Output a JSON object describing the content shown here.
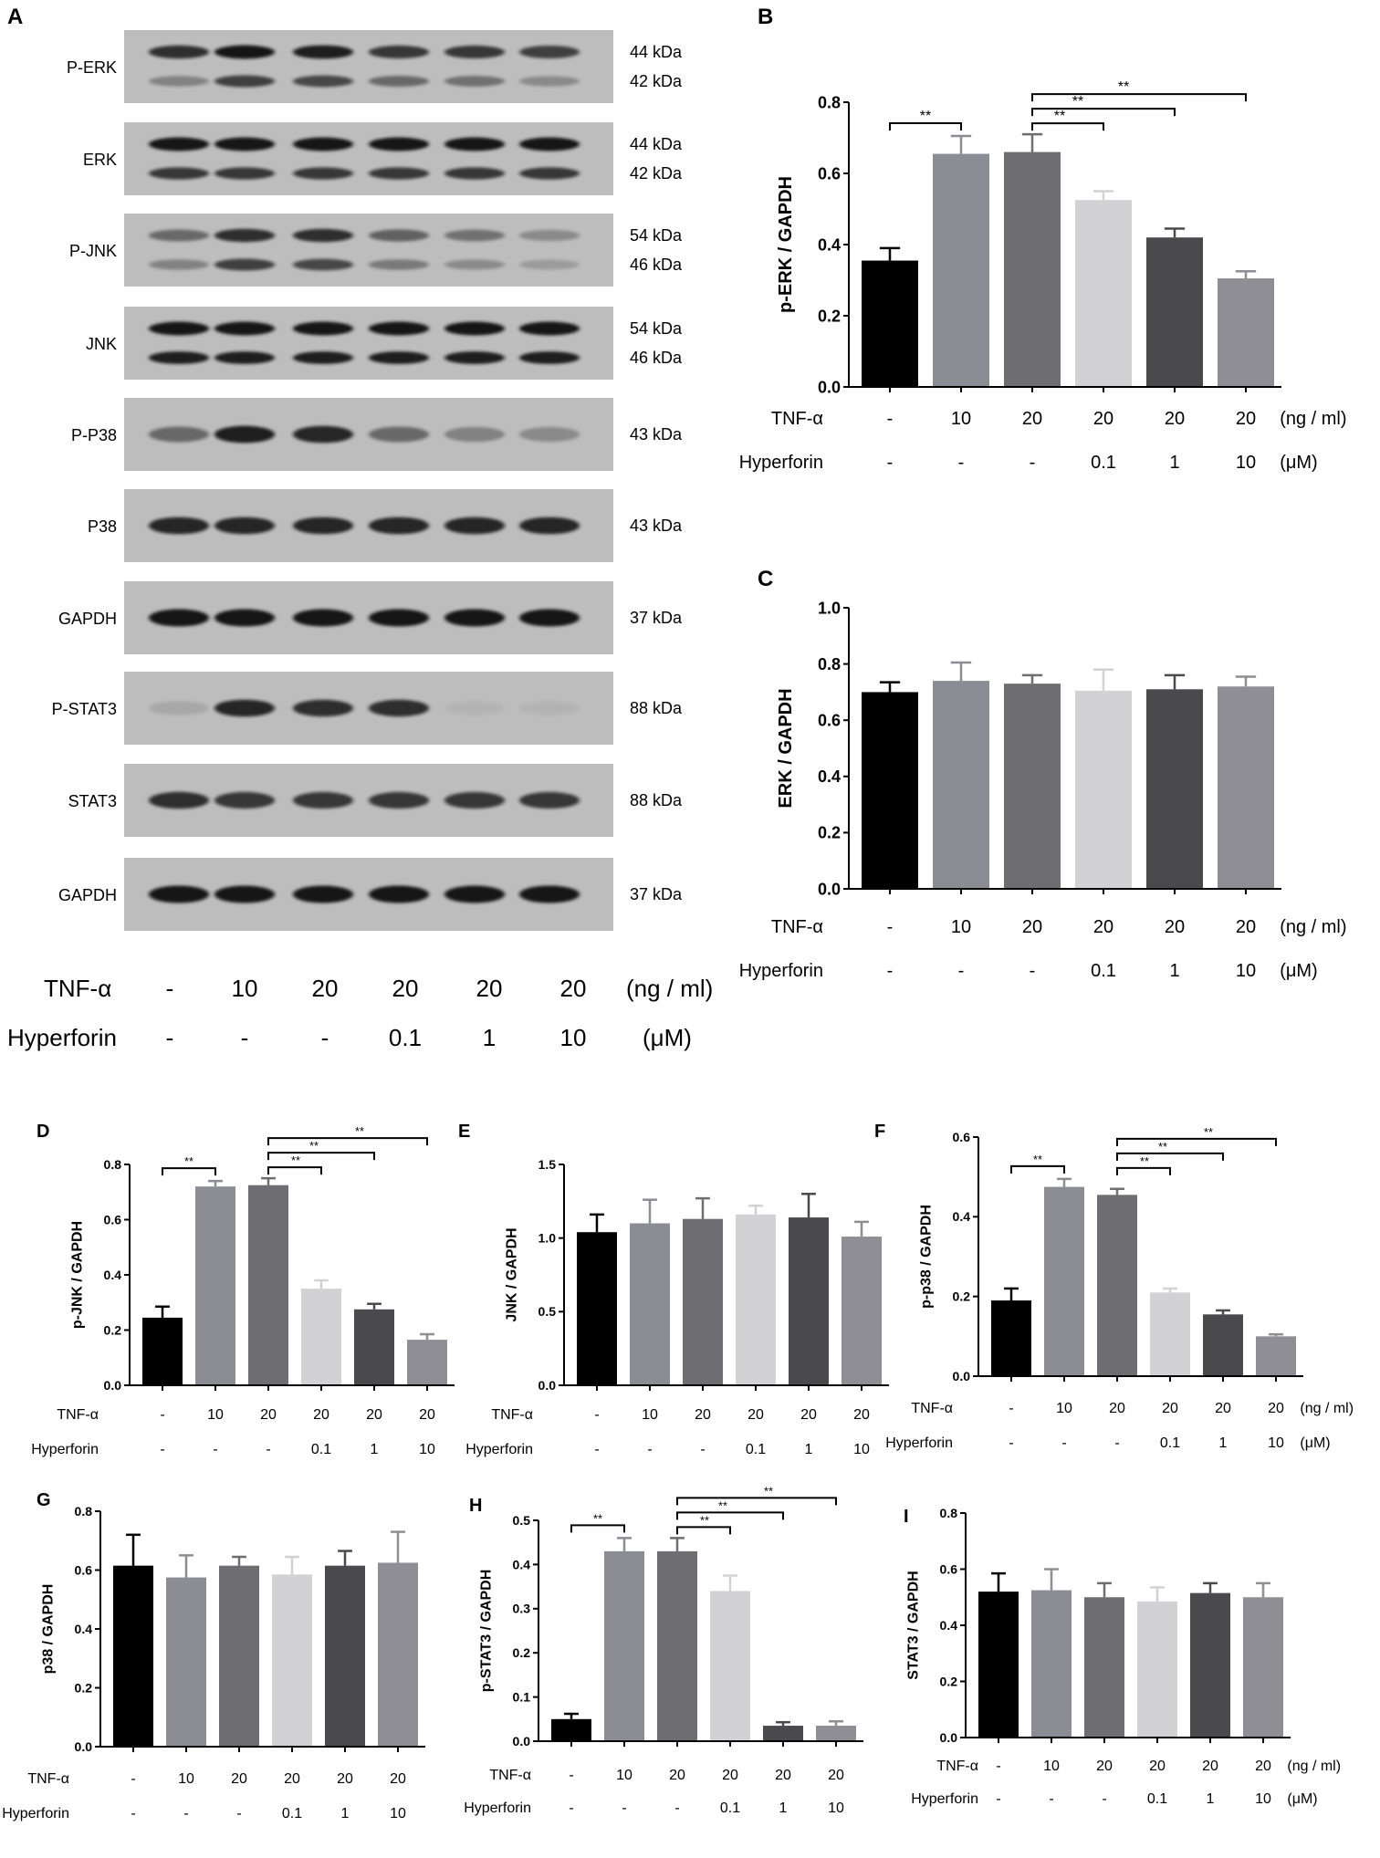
{
  "colors": {
    "bar_colors": [
      "#000000",
      "#8c8c94",
      "#6e6e72",
      "#d2d2d4",
      "#4a4a4c",
      "#8e8e94"
    ],
    "text": "#111111",
    "blot_bg": "#bdbdbd",
    "band": "#141414"
  },
  "western_blot": {
    "letter": "A",
    "rows": [
      {
        "label": "P-ERK",
        "kda": [
          "44 kDa",
          "42 kDa"
        ],
        "band1": [
          0.85,
          1.0,
          0.95,
          0.8,
          0.8,
          0.75
        ],
        "band2": [
          0.35,
          0.75,
          0.7,
          0.5,
          0.45,
          0.3
        ]
      },
      {
        "label": "ERK",
        "kda": [
          "44 kDa",
          "42 kDa"
        ],
        "band1": [
          1,
          1,
          1,
          1,
          1,
          1
        ],
        "band2": [
          0.8,
          0.8,
          0.8,
          0.8,
          0.8,
          0.8
        ]
      },
      {
        "label": "P-JNK",
        "kda": [
          "54 kDa",
          "46 kDa"
        ],
        "band1": [
          0.5,
          0.85,
          0.85,
          0.55,
          0.45,
          0.3
        ],
        "band2": [
          0.35,
          0.75,
          0.7,
          0.4,
          0.3,
          0.2
        ]
      },
      {
        "label": "JNK",
        "kda": [
          "54 kDa",
          "46 kDa"
        ],
        "band1": [
          1,
          1,
          1,
          1,
          1,
          1
        ],
        "band2": [
          0.95,
          0.95,
          0.95,
          0.95,
          0.95,
          0.95
        ]
      },
      {
        "label": "P-P38",
        "kda": [
          "43 kDa"
        ],
        "band1": [
          0.5,
          0.95,
          0.9,
          0.5,
          0.35,
          0.3
        ]
      },
      {
        "label": "P38",
        "kda": [
          "43 kDa"
        ],
        "band1": [
          0.9,
          0.9,
          0.9,
          0.9,
          0.9,
          0.9
        ]
      },
      {
        "label": "GAPDH",
        "kda": [
          "37 kDa"
        ],
        "band1": [
          1,
          1,
          1,
          1,
          1,
          1
        ]
      },
      {
        "label": "P-STAT3",
        "kda": [
          "88 kDa"
        ],
        "band1": [
          0.12,
          0.9,
          0.85,
          0.85,
          0.03,
          0.03
        ]
      },
      {
        "label": "STAT3",
        "kda": [
          "88 kDa"
        ],
        "band1": [
          0.85,
          0.8,
          0.8,
          0.8,
          0.8,
          0.8
        ]
      },
      {
        "label": "GAPDH",
        "kda": [
          "37 kDa"
        ],
        "band1": [
          1,
          1,
          1,
          1,
          1,
          1
        ]
      }
    ],
    "tnf_label": "TNF-α",
    "tnf_values": [
      "-",
      "10",
      "20",
      "20",
      "20",
      "20"
    ],
    "tnf_unit": "(ng / ml)",
    "hyper_label": "Hyperforin",
    "hyper_values": [
      "-",
      "-",
      "-",
      "0.1",
      "1",
      "10"
    ],
    "hyper_unit": "(μM)"
  },
  "chart_data": [
    {
      "letter": "B",
      "type": "bar",
      "ylabel": "p-ERK / GAPDH",
      "ylim": [
        0,
        0.8
      ],
      "yticks": [
        "0.0",
        "0.2",
        "0.4",
        "0.6",
        "0.8"
      ],
      "values": [
        0.355,
        0.655,
        0.66,
        0.525,
        0.42,
        0.305
      ],
      "errors": [
        0.035,
        0.05,
        0.05,
        0.025,
        0.025,
        0.02
      ],
      "tnf_label": "TNF-α",
      "tnf_values": [
        "-",
        "10",
        "20",
        "20",
        "20",
        "20"
      ],
      "tnf_unit": "(ng / ml)",
      "hyper_label": "Hyperforin",
      "hyper_values": [
        "-",
        "-",
        "-",
        "0.1",
        "1",
        "10"
      ],
      "hyper_unit": "(μM)",
      "significance": [
        {
          "from": 0,
          "to": 1,
          "label": "**"
        },
        {
          "from": 2,
          "to": 3,
          "label": "**"
        },
        {
          "from": 2,
          "to": 4,
          "label": "**"
        },
        {
          "from": 2,
          "to": 5,
          "label": "**"
        }
      ]
    },
    {
      "letter": "C",
      "type": "bar",
      "ylabel": "ERK / GAPDH",
      "ylim": [
        0,
        1.0
      ],
      "yticks": [
        "0.0",
        "0.2",
        "0.4",
        "0.6",
        "0.8",
        "1.0"
      ],
      "values": [
        0.7,
        0.74,
        0.73,
        0.705,
        0.71,
        0.72
      ],
      "errors": [
        0.035,
        0.065,
        0.03,
        0.075,
        0.05,
        0.035
      ],
      "tnf_label": "TNF-α",
      "tnf_values": [
        "-",
        "10",
        "20",
        "20",
        "20",
        "20"
      ],
      "tnf_unit": "(ng / ml)",
      "hyper_label": "Hyperforin",
      "hyper_values": [
        "-",
        "-",
        "-",
        "0.1",
        "1",
        "10"
      ],
      "hyper_unit": "(μM)",
      "significance": []
    },
    {
      "letter": "D",
      "type": "bar",
      "ylabel": "p-JNK / GAPDH",
      "ylim": [
        0,
        0.8
      ],
      "yticks": [
        "0.0",
        "0.2",
        "0.4",
        "0.6",
        "0.8"
      ],
      "values": [
        0.245,
        0.72,
        0.725,
        0.35,
        0.275,
        0.165
      ],
      "errors": [
        0.04,
        0.02,
        0.025,
        0.03,
        0.02,
        0.02
      ],
      "tnf_label": "TNF-α",
      "tnf_values": [
        "-",
        "10",
        "20",
        "20",
        "20",
        "20"
      ],
      "tnf_unit": "",
      "hyper_label": "Hyperforin",
      "hyper_values": [
        "-",
        "-",
        "-",
        "0.1",
        "1",
        "10"
      ],
      "hyper_unit": "",
      "significance": [
        {
          "from": 0,
          "to": 1,
          "label": "**"
        },
        {
          "from": 2,
          "to": 3,
          "label": "**"
        },
        {
          "from": 2,
          "to": 4,
          "label": "**"
        },
        {
          "from": 2,
          "to": 5,
          "label": "**"
        }
      ]
    },
    {
      "letter": "E",
      "type": "bar",
      "ylabel": "JNK / GAPDH",
      "ylim": [
        0,
        1.5
      ],
      "yticks": [
        "0.0",
        "0.5",
        "1.0",
        "1.5"
      ],
      "values": [
        1.04,
        1.1,
        1.13,
        1.16,
        1.14,
        1.01
      ],
      "errors": [
        0.12,
        0.16,
        0.14,
        0.06,
        0.16,
        0.1
      ],
      "tnf_label": "TNF-α",
      "tnf_values": [
        "-",
        "10",
        "20",
        "20",
        "20",
        "20"
      ],
      "tnf_unit": "",
      "hyper_label": "Hyperforin",
      "hyper_values": [
        "-",
        "-",
        "-",
        "0.1",
        "1",
        "10"
      ],
      "hyper_unit": "",
      "significance": []
    },
    {
      "letter": "F",
      "type": "bar",
      "ylabel": "p-p38 / GAPDH",
      "ylim": [
        0,
        0.6
      ],
      "yticks": [
        "0.0",
        "0.2",
        "0.4",
        "0.6"
      ],
      "values": [
        0.19,
        0.475,
        0.455,
        0.21,
        0.155,
        0.1
      ],
      "errors": [
        0.03,
        0.02,
        0.015,
        0.01,
        0.01,
        0.005
      ],
      "tnf_label": "TNF-α",
      "tnf_values": [
        "-",
        "10",
        "20",
        "20",
        "20",
        "20"
      ],
      "tnf_unit": "(ng / ml)",
      "hyper_label": "Hyperforin",
      "hyper_values": [
        "-",
        "-",
        "-",
        "0.1",
        "1",
        "10"
      ],
      "hyper_unit": "(μM)",
      "significance": [
        {
          "from": 0,
          "to": 1,
          "label": "**"
        },
        {
          "from": 2,
          "to": 3,
          "label": "**"
        },
        {
          "from": 2,
          "to": 4,
          "label": "**"
        },
        {
          "from": 2,
          "to": 5,
          "label": "**"
        }
      ]
    },
    {
      "letter": "G",
      "type": "bar",
      "ylabel": "p38 / GAPDH",
      "ylim": [
        0,
        0.8
      ],
      "yticks": [
        "0.0",
        "0.2",
        "0.4",
        "0.6",
        "0.8"
      ],
      "values": [
        0.615,
        0.575,
        0.615,
        0.585,
        0.615,
        0.625
      ],
      "errors": [
        0.105,
        0.075,
        0.03,
        0.06,
        0.05,
        0.105
      ],
      "tnf_label": "TNF-α",
      "tnf_values": [
        "-",
        "10",
        "20",
        "20",
        "20",
        "20"
      ],
      "tnf_unit": "",
      "hyper_label": "Hyperforin",
      "hyper_values": [
        "-",
        "-",
        "-",
        "0.1",
        "1",
        "10"
      ],
      "hyper_unit": "",
      "significance": []
    },
    {
      "letter": "H",
      "type": "bar",
      "ylabel": "p-STAT3 / GAPDH",
      "ylim": [
        0,
        0.5
      ],
      "yticks": [
        "0.0",
        "0.1",
        "0.2",
        "0.3",
        "0.4",
        "0.5"
      ],
      "values": [
        0.05,
        0.43,
        0.43,
        0.34,
        0.035,
        0.035
      ],
      "errors": [
        0.012,
        0.03,
        0.03,
        0.035,
        0.008,
        0.01
      ],
      "tnf_label": "TNF-α",
      "tnf_values": [
        "-",
        "10",
        "20",
        "20",
        "20",
        "20"
      ],
      "tnf_unit": "",
      "hyper_label": "Hyperforin",
      "hyper_values": [
        "-",
        "-",
        "-",
        "0.1",
        "1",
        "10"
      ],
      "hyper_unit": "",
      "significance": [
        {
          "from": 0,
          "to": 1,
          "label": "**"
        },
        {
          "from": 2,
          "to": 3,
          "label": "**"
        },
        {
          "from": 2,
          "to": 4,
          "label": "**"
        },
        {
          "from": 2,
          "to": 5,
          "label": "**"
        }
      ]
    },
    {
      "letter": "I",
      "type": "bar",
      "ylabel": "STAT3 / GAPDH",
      "ylim": [
        0,
        0.8
      ],
      "yticks": [
        "0.0",
        "0.2",
        "0.4",
        "0.6",
        "0.8"
      ],
      "values": [
        0.52,
        0.525,
        0.5,
        0.485,
        0.515,
        0.5
      ],
      "errors": [
        0.065,
        0.075,
        0.05,
        0.05,
        0.035,
        0.05
      ],
      "tnf_label": "TNF-α",
      "tnf_values": [
        "-",
        "10",
        "20",
        "20",
        "20",
        "20"
      ],
      "tnf_unit": "(ng / ml)",
      "hyper_label": "Hyperforin",
      "hyper_values": [
        "-",
        "-",
        "-",
        "0.1",
        "1",
        "10"
      ],
      "hyper_unit": "(μM)",
      "significance": []
    }
  ]
}
